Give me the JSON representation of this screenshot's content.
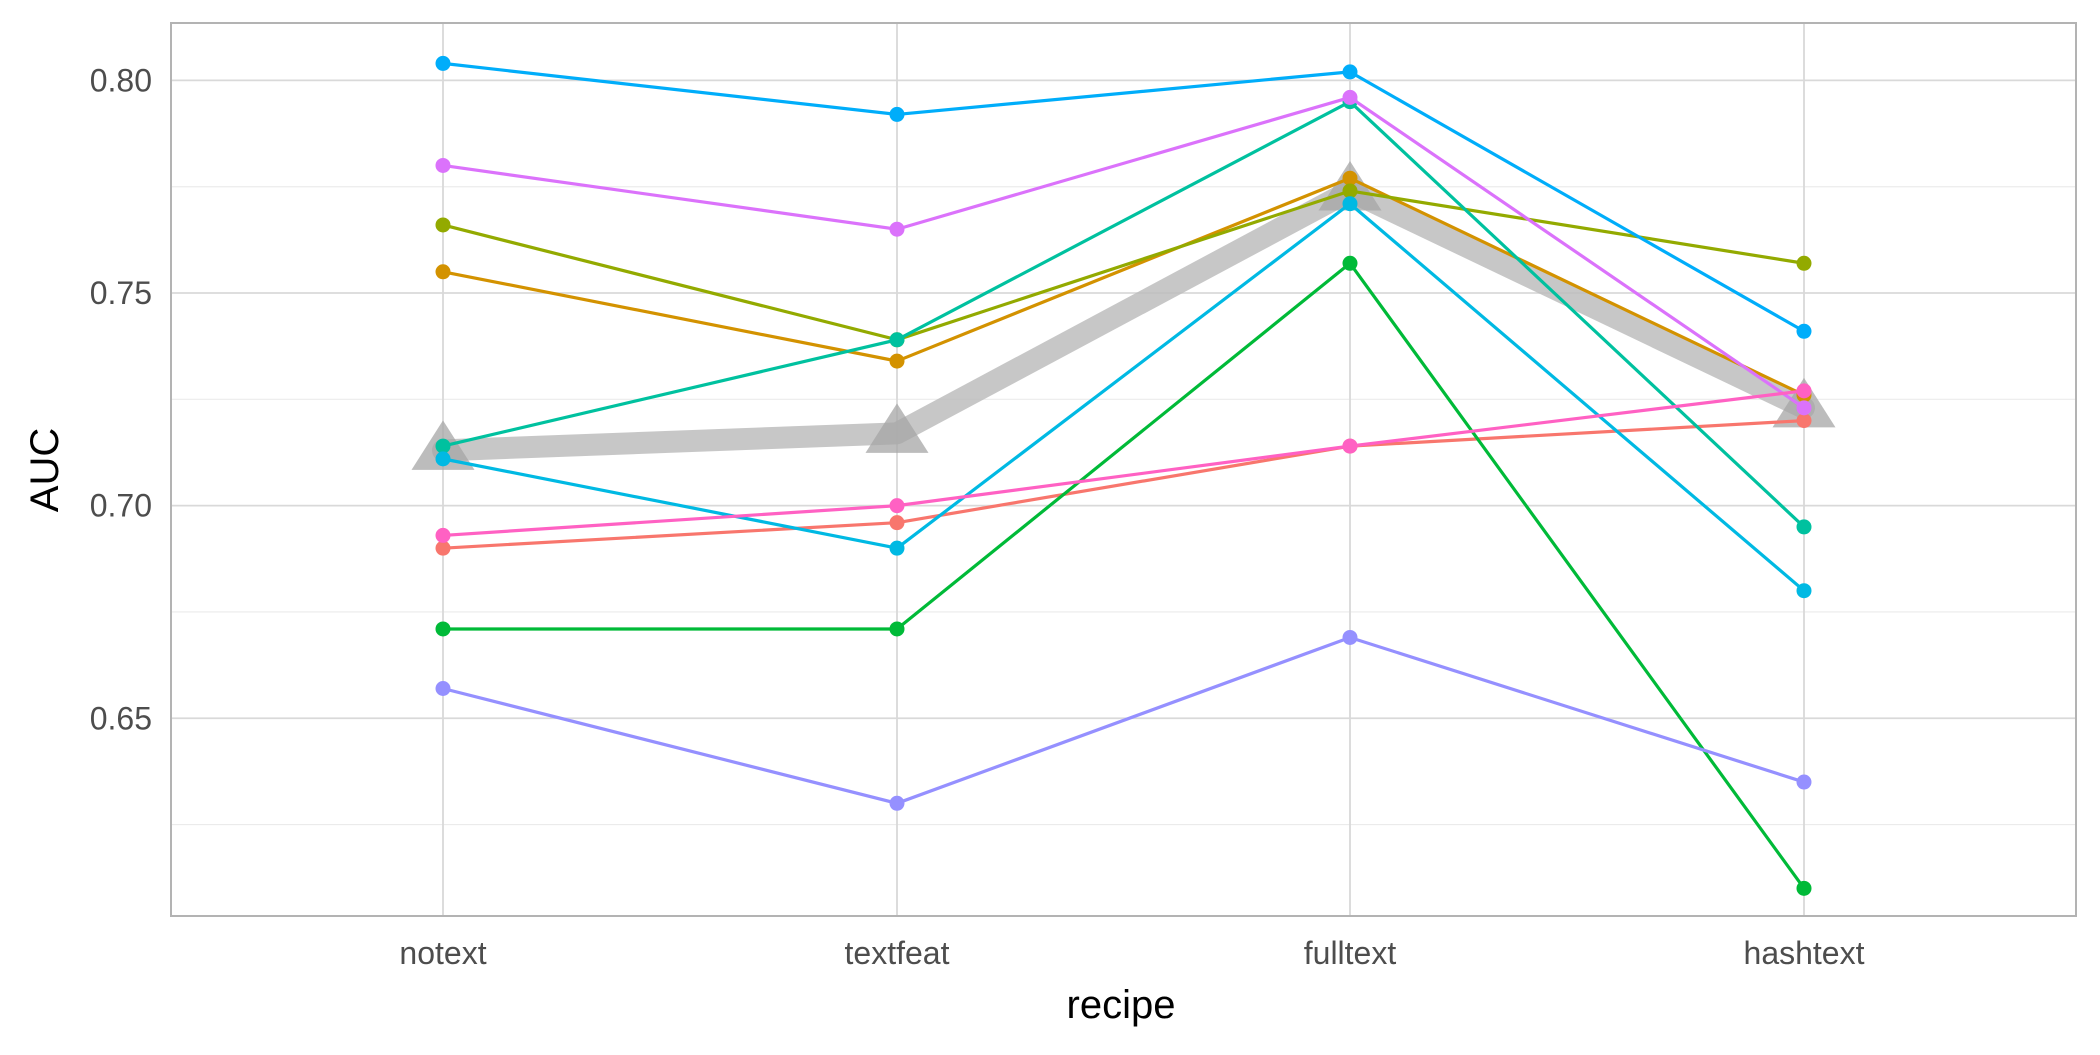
{
  "chart_data": {
    "type": "line",
    "title": "",
    "xlabel": "recipe",
    "ylabel": "AUC",
    "categories": [
      "notext",
      "textfeat",
      "fulltext",
      "hashtext"
    ],
    "ylim": [
      0.6035,
      0.8135
    ],
    "y_ticks": [
      0.65,
      0.7,
      0.75,
      0.8
    ],
    "y_tick_labels": [
      "0.65",
      "0.70",
      "0.75",
      "0.80"
    ],
    "grid": true,
    "legend": "none",
    "series": [
      {
        "color": "#F8766D",
        "values": [
          0.69,
          0.696,
          0.714,
          0.72
        ]
      },
      {
        "color": "#D39200",
        "values": [
          0.755,
          0.734,
          0.777,
          0.726
        ]
      },
      {
        "color": "#93AA00",
        "values": [
          0.766,
          0.739,
          0.774,
          0.757
        ]
      },
      {
        "color": "#00BA38",
        "values": [
          0.671,
          0.671,
          0.757,
          0.61
        ]
      },
      {
        "color": "#00C19F",
        "values": [
          0.714,
          0.739,
          0.795,
          0.695
        ]
      },
      {
        "color": "#00B9E3",
        "values": [
          0.711,
          0.69,
          0.771,
          0.68
        ]
      },
      {
        "color": "#00ADFA",
        "values": [
          0.804,
          0.792,
          0.802,
          0.741
        ]
      },
      {
        "color": "#9590FF",
        "values": [
          0.657,
          0.63,
          0.669,
          0.635
        ]
      },
      {
        "color": "#DB72FB",
        "values": [
          0.78,
          0.765,
          0.796,
          0.723
        ]
      },
      {
        "color": "#FF61C3",
        "values": [
          0.693,
          0.7,
          0.714,
          0.727
        ]
      }
    ],
    "mean_series": {
      "color": "#bdbdbd",
      "marker": "triangle",
      "values": [
        0.713,
        0.717,
        0.774,
        0.723
      ]
    }
  }
}
